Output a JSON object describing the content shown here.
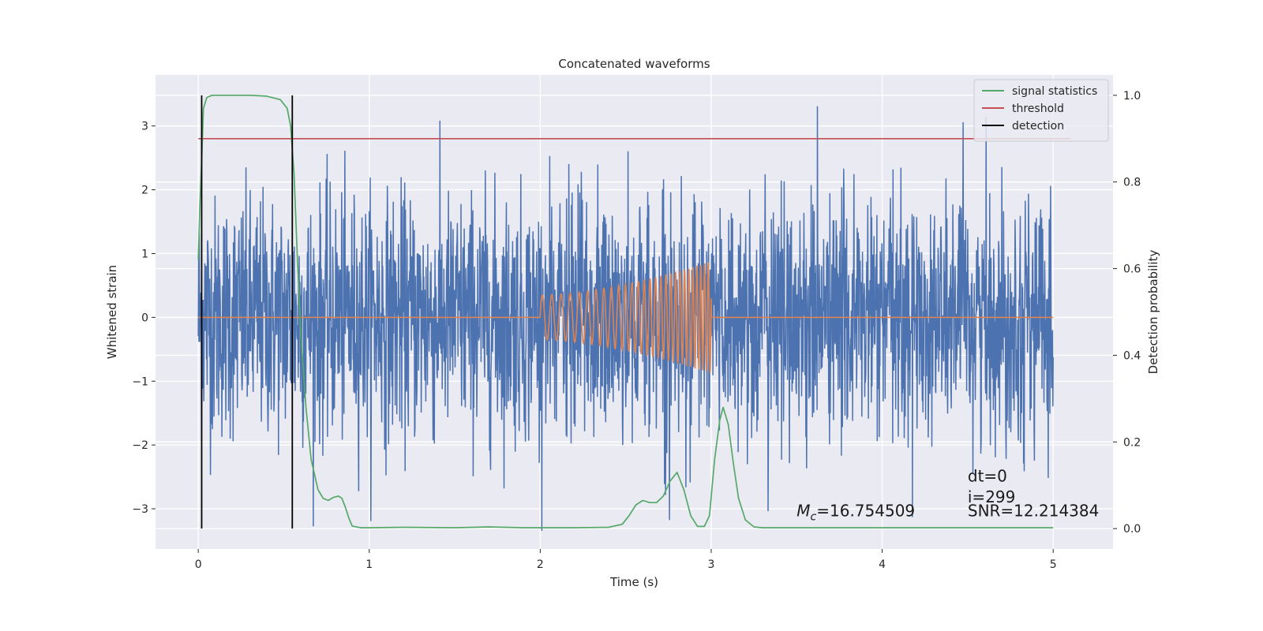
{
  "chart_data": {
    "type": "line",
    "title": "Concatenated waveforms",
    "xlabel": "Time (s)",
    "ylabel": "Whitened strain",
    "ylabel_right": "Detection probability",
    "xlim": [
      -0.25,
      5.35
    ],
    "ylim": [
      -3.63,
      3.8
    ],
    "ylim_right": [
      -0.047,
      1.047
    ],
    "x_ticks": [
      0,
      1,
      2,
      3,
      4,
      5
    ],
    "x_tick_labels": [
      "0",
      "1",
      "2",
      "3",
      "4",
      "5"
    ],
    "y_ticks": [
      -3,
      -2,
      -1,
      0,
      1,
      2,
      3
    ],
    "y_tick_labels": [
      "−3",
      "−2",
      "−1",
      "0",
      "1",
      "2",
      "3"
    ],
    "y_right_ticks": [
      0.0,
      0.2,
      0.4,
      0.6,
      0.8,
      1.0
    ],
    "y_right_tick_labels": [
      "0.0",
      "0.2",
      "0.4",
      "0.6",
      "0.8",
      "1.0"
    ],
    "grid": true,
    "legend_position": "top-right",
    "series": [
      {
        "name": "",
        "kind": "strain-noise",
        "axis": "left",
        "color": "#4c72b0",
        "x_range": [
          0,
          5
        ],
        "amplitude_typical": 1.6,
        "amplitude_peak": 3.47
      },
      {
        "name": "",
        "kind": "injected-chirp",
        "axis": "left",
        "color": "#dd8452",
        "x_range": [
          0,
          5
        ],
        "chirp_start": 2.0,
        "chirp_end": 3.0,
        "amp_start": 0.35,
        "amp_end": 0.88,
        "freq_start": 18,
        "freq_end": 48
      },
      {
        "name": "signal statistics",
        "axis": "right",
        "color": "#55a868",
        "x": [
          0.0,
          0.01,
          0.02,
          0.03,
          0.05,
          0.08,
          0.1,
          0.2,
          0.3,
          0.4,
          0.48,
          0.52,
          0.54,
          0.56,
          0.58,
          0.6,
          0.63,
          0.66,
          0.7,
          0.73,
          0.76,
          0.79,
          0.82,
          0.84,
          0.86,
          0.88,
          0.9,
          0.95,
          1.0,
          1.2,
          1.5,
          1.7,
          1.9,
          2.2,
          2.4,
          2.48,
          2.52,
          2.56,
          2.6,
          2.64,
          2.68,
          2.72,
          2.76,
          2.8,
          2.84,
          2.88,
          2.92,
          2.96,
          2.99,
          3.02,
          3.05,
          3.07,
          3.1,
          3.13,
          3.16,
          3.2,
          3.25,
          3.3,
          3.5,
          4.0,
          4.5,
          5.0
        ],
        "y": [
          0.62,
          0.75,
          0.85,
          0.97,
          0.995,
          1.0,
          1.0,
          1.0,
          1.0,
          0.998,
          0.99,
          0.97,
          0.93,
          0.82,
          0.62,
          0.45,
          0.28,
          0.16,
          0.09,
          0.07,
          0.065,
          0.072,
          0.075,
          0.07,
          0.05,
          0.025,
          0.006,
          0.002,
          0.002,
          0.003,
          0.002,
          0.004,
          0.002,
          0.002,
          0.003,
          0.01,
          0.03,
          0.055,
          0.065,
          0.06,
          0.06,
          0.075,
          0.11,
          0.13,
          0.09,
          0.03,
          0.005,
          0.005,
          0.03,
          0.16,
          0.25,
          0.28,
          0.24,
          0.15,
          0.07,
          0.02,
          0.004,
          0.002,
          0.002,
          0.002,
          0.002,
          0.002
        ]
      },
      {
        "name": "threshold",
        "axis": "right",
        "color": "#c44e52",
        "x": [
          0.0,
          5.1
        ],
        "y": [
          0.9,
          0.9
        ]
      },
      {
        "name": "detection",
        "axis": "right",
        "color": "#000000",
        "vlines": [
          0.02,
          0.55
        ],
        "y_range": [
          0.0,
          1.0
        ]
      }
    ],
    "annotations": {
      "dt": "dt=0",
      "i": "i=299",
      "snr": "SNR=12.214384",
      "mc_symbol": "M",
      "mc_sub": "c",
      "mc_value": "=16.754509"
    }
  }
}
